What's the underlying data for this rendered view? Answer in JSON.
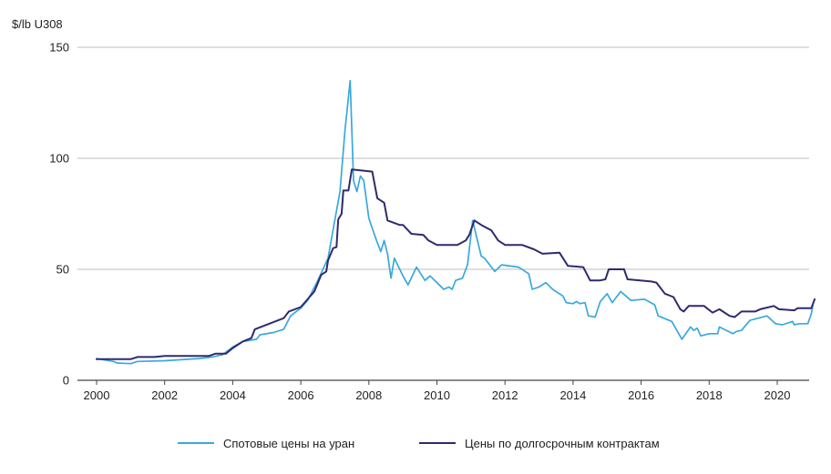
{
  "chart_data": {
    "type": "line",
    "ylabel": "$/lb U308",
    "ylim": [
      0,
      150
    ],
    "y_ticks": [
      0,
      50,
      100,
      150
    ],
    "xlim": [
      2000,
      2020.5
    ],
    "x_ticks": [
      2000,
      2002,
      2004,
      2006,
      2008,
      2010,
      2012,
      2014,
      2016,
      2018,
      2020
    ],
    "grid": "horizontal",
    "legend_position": "bottom",
    "series": [
      {
        "name": "Спотовые цены на уран",
        "color": "#3aa8dc",
        "points": [
          [
            2000.0,
            9.8
          ],
          [
            2000.5,
            8.5
          ],
          [
            2000.6,
            7.8
          ],
          [
            2001.0,
            7.5
          ],
          [
            2001.2,
            8.5
          ],
          [
            2002.0,
            8.8
          ],
          [
            2003.0,
            9.8
          ],
          [
            2003.4,
            10.5
          ],
          [
            2003.7,
            11.5
          ],
          [
            2004.0,
            15.0
          ],
          [
            2004.3,
            17.5
          ],
          [
            2004.5,
            18.0
          ],
          [
            2004.7,
            18.5
          ],
          [
            2004.8,
            20.5
          ],
          [
            2005.2,
            21.5
          ],
          [
            2005.5,
            23.0
          ],
          [
            2005.7,
            29.0
          ],
          [
            2006.0,
            32.5
          ],
          [
            2006.2,
            36.0
          ],
          [
            2006.5,
            45.0
          ],
          [
            2006.8,
            55.0
          ],
          [
            2007.0,
            72.0
          ],
          [
            2007.15,
            85.0
          ],
          [
            2007.3,
            113.0
          ],
          [
            2007.45,
            135.0
          ],
          [
            2007.55,
            90.0
          ],
          [
            2007.65,
            85.0
          ],
          [
            2007.75,
            92.0
          ],
          [
            2007.85,
            90.0
          ],
          [
            2008.0,
            73.0
          ],
          [
            2008.2,
            64.0
          ],
          [
            2008.35,
            58.0
          ],
          [
            2008.45,
            63.0
          ],
          [
            2008.55,
            57.0
          ],
          [
            2008.65,
            46.0
          ],
          [
            2008.75,
            55.0
          ],
          [
            2009.0,
            47.0
          ],
          [
            2009.15,
            43.0
          ],
          [
            2009.4,
            51.0
          ],
          [
            2009.65,
            45.0
          ],
          [
            2009.8,
            47.0
          ],
          [
            2010.0,
            44.0
          ],
          [
            2010.2,
            41.0
          ],
          [
            2010.35,
            42.0
          ],
          [
            2010.45,
            41.0
          ],
          [
            2010.55,
            45.0
          ],
          [
            2010.75,
            46.0
          ],
          [
            2010.9,
            52.0
          ],
          [
            2011.05,
            72.0
          ],
          [
            2011.3,
            56.0
          ],
          [
            2011.4,
            55.0
          ],
          [
            2011.7,
            49.0
          ],
          [
            2011.9,
            52.0
          ],
          [
            2012.4,
            51.0
          ],
          [
            2012.7,
            48.0
          ],
          [
            2012.8,
            41.0
          ],
          [
            2013.0,
            42.0
          ],
          [
            2013.2,
            44.0
          ],
          [
            2013.4,
            41.0
          ],
          [
            2013.7,
            38.0
          ],
          [
            2013.8,
            35.0
          ],
          [
            2014.0,
            34.5
          ],
          [
            2014.1,
            35.5
          ],
          [
            2014.2,
            34.5
          ],
          [
            2014.35,
            35.0
          ],
          [
            2014.45,
            29.0
          ],
          [
            2014.65,
            28.5
          ],
          [
            2014.8,
            35.5
          ],
          [
            2015.0,
            39.0
          ],
          [
            2015.15,
            35.0
          ],
          [
            2015.4,
            40.0
          ],
          [
            2015.7,
            36.0
          ],
          [
            2016.1,
            36.5
          ],
          [
            2016.4,
            34.0
          ],
          [
            2016.5,
            29.0
          ],
          [
            2016.9,
            26.5
          ],
          [
            2017.2,
            18.5
          ],
          [
            2017.45,
            24.0
          ],
          [
            2017.55,
            22.5
          ],
          [
            2017.65,
            23.5
          ],
          [
            2017.75,
            20.0
          ],
          [
            2018.0,
            21.0
          ],
          [
            2018.25,
            21.0
          ],
          [
            2018.3,
            24.0
          ],
          [
            2018.7,
            21.0
          ],
          [
            2018.8,
            22.0
          ],
          [
            2018.95,
            22.5
          ],
          [
            2019.2,
            27.0
          ],
          [
            2019.7,
            29.0
          ],
          [
            2019.95,
            25.5
          ],
          [
            2020.15,
            25.0
          ],
          [
            2020.45,
            26.5
          ],
          [
            2020.5,
            25.0
          ],
          [
            2020.65,
            25.5
          ],
          [
            2020.9,
            25.5
          ],
          [
            2021.0,
            30.0
          ],
          [
            2021.05,
            34.0
          ]
        ]
      },
      {
        "name": "Цены по долгосрочным контрактам",
        "color": "#2e2a6e",
        "points": [
          [
            2000.0,
            9.5
          ],
          [
            2001.0,
            9.5
          ],
          [
            2001.2,
            10.5
          ],
          [
            2001.7,
            10.5
          ],
          [
            2002.0,
            11.0
          ],
          [
            2003.0,
            11.0
          ],
          [
            2003.3,
            11.0
          ],
          [
            2003.5,
            12.0
          ],
          [
            2003.8,
            12.0
          ],
          [
            2004.0,
            14.5
          ],
          [
            2004.3,
            17.5
          ],
          [
            2004.55,
            19.0
          ],
          [
            2004.65,
            23.0
          ],
          [
            2005.5,
            28.0
          ],
          [
            2005.65,
            31.0
          ],
          [
            2006.0,
            33.0
          ],
          [
            2006.4,
            40.0
          ],
          [
            2006.6,
            47.5
          ],
          [
            2006.75,
            49.0
          ],
          [
            2006.8,
            54.0
          ],
          [
            2006.95,
            59.5
          ],
          [
            2007.05,
            60.0
          ],
          [
            2007.1,
            72.5
          ],
          [
            2007.2,
            75.0
          ],
          [
            2007.25,
            85.5
          ],
          [
            2007.4,
            85.5
          ],
          [
            2007.5,
            95.0
          ],
          [
            2008.1,
            94.0
          ],
          [
            2008.25,
            82.0
          ],
          [
            2008.35,
            81.0
          ],
          [
            2008.45,
            80.0
          ],
          [
            2008.55,
            72.0
          ],
          [
            2008.9,
            70.0
          ],
          [
            2009.0,
            70.0
          ],
          [
            2009.25,
            66.0
          ],
          [
            2009.6,
            65.5
          ],
          [
            2009.75,
            63.0
          ],
          [
            2010.0,
            61.0
          ],
          [
            2010.4,
            61.0
          ],
          [
            2010.6,
            61.0
          ],
          [
            2010.85,
            63.0
          ],
          [
            2010.95,
            65.5
          ],
          [
            2011.1,
            72.0
          ],
          [
            2011.3,
            70.0
          ],
          [
            2011.6,
            67.5
          ],
          [
            2011.8,
            63.0
          ],
          [
            2012.0,
            61.0
          ],
          [
            2012.5,
            61.0
          ],
          [
            2012.85,
            59.0
          ],
          [
            2013.1,
            57.0
          ],
          [
            2013.6,
            57.5
          ],
          [
            2013.85,
            51.5
          ],
          [
            2014.3,
            51.0
          ],
          [
            2014.5,
            45.0
          ],
          [
            2014.8,
            45.0
          ],
          [
            2014.95,
            45.5
          ],
          [
            2015.05,
            50.0
          ],
          [
            2015.5,
            50.0
          ],
          [
            2015.6,
            45.5
          ],
          [
            2016.3,
            44.5
          ],
          [
            2016.45,
            44.0
          ],
          [
            2016.7,
            39.0
          ],
          [
            2016.95,
            37.5
          ],
          [
            2017.15,
            32.0
          ],
          [
            2017.25,
            31.0
          ],
          [
            2017.4,
            33.5
          ],
          [
            2017.85,
            33.5
          ],
          [
            2018.1,
            30.5
          ],
          [
            2018.3,
            32.0
          ],
          [
            2018.6,
            29.0
          ],
          [
            2018.75,
            28.5
          ],
          [
            2018.95,
            31.0
          ],
          [
            2019.35,
            31.0
          ],
          [
            2019.5,
            32.0
          ],
          [
            2019.9,
            33.5
          ],
          [
            2020.05,
            32.0
          ],
          [
            2020.5,
            31.5
          ],
          [
            2020.6,
            32.5
          ],
          [
            2021.0,
            32.5
          ],
          [
            2021.1,
            36.5
          ]
        ]
      }
    ]
  }
}
